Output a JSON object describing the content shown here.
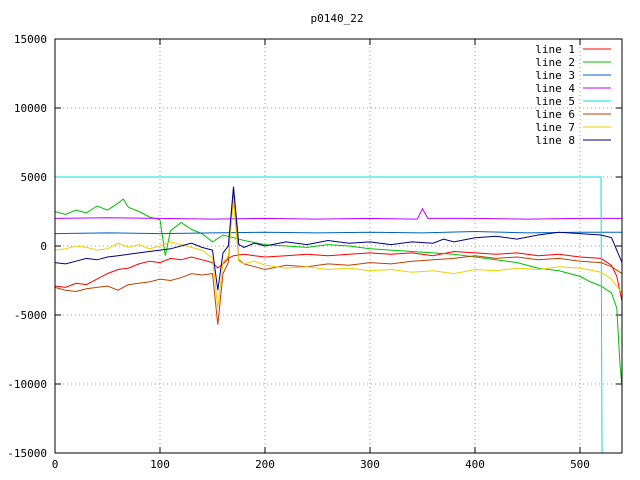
{
  "chart_data": {
    "type": "line",
    "title": "p0140_22",
    "xlabel": "",
    "ylabel": "",
    "xlim": [
      0,
      540
    ],
    "ylim": [
      -15000,
      15000
    ],
    "xticks": [
      0,
      100,
      200,
      300,
      400,
      500
    ],
    "yticks": [
      -15000,
      -10000,
      -5000,
      0,
      5000,
      10000,
      15000
    ],
    "grid": true,
    "legend_position": "top-right",
    "series": [
      {
        "name": "line 1",
        "color": "#ff0000",
        "points": [
          [
            0,
            -2900
          ],
          [
            10,
            -3000
          ],
          [
            20,
            -2700
          ],
          [
            30,
            -2800
          ],
          [
            40,
            -2400
          ],
          [
            50,
            -2000
          ],
          [
            60,
            -1700
          ],
          [
            70,
            -1600
          ],
          [
            80,
            -1300
          ],
          [
            90,
            -1100
          ],
          [
            100,
            -1200
          ],
          [
            110,
            -900
          ],
          [
            120,
            -1000
          ],
          [
            130,
            -800
          ],
          [
            140,
            -1000
          ],
          [
            150,
            -1200
          ],
          [
            155,
            -1600
          ],
          [
            160,
            -1300
          ],
          [
            165,
            -900
          ],
          [
            170,
            -700
          ],
          [
            180,
            -600
          ],
          [
            190,
            -700
          ],
          [
            200,
            -800
          ],
          [
            220,
            -700
          ],
          [
            240,
            -600
          ],
          [
            260,
            -700
          ],
          [
            280,
            -600
          ],
          [
            300,
            -500
          ],
          [
            320,
            -600
          ],
          [
            340,
            -500
          ],
          [
            360,
            -700
          ],
          [
            380,
            -400
          ],
          [
            400,
            -500
          ],
          [
            420,
            -600
          ],
          [
            440,
            -500
          ],
          [
            460,
            -700
          ],
          [
            480,
            -600
          ],
          [
            500,
            -800
          ],
          [
            520,
            -900
          ],
          [
            530,
            -1400
          ],
          [
            535,
            -2200
          ],
          [
            540,
            -4000
          ]
        ]
      },
      {
        "name": "line 2",
        "color": "#00c000",
        "points": [
          [
            0,
            2500
          ],
          [
            10,
            2300
          ],
          [
            20,
            2600
          ],
          [
            30,
            2400
          ],
          [
            40,
            2900
          ],
          [
            50,
            2600
          ],
          [
            60,
            3100
          ],
          [
            65,
            3400
          ],
          [
            70,
            2800
          ],
          [
            80,
            2500
          ],
          [
            90,
            2100
          ],
          [
            100,
            1900
          ],
          [
            105,
            -700
          ],
          [
            110,
            1100
          ],
          [
            120,
            1700
          ],
          [
            130,
            1200
          ],
          [
            140,
            900
          ],
          [
            150,
            300
          ],
          [
            160,
            800
          ],
          [
            170,
            600
          ],
          [
            180,
            400
          ],
          [
            200,
            100
          ],
          [
            220,
            0
          ],
          [
            240,
            -100
          ],
          [
            260,
            100
          ],
          [
            280,
            0
          ],
          [
            300,
            -200
          ],
          [
            320,
            -300
          ],
          [
            340,
            -400
          ],
          [
            360,
            -500
          ],
          [
            380,
            -600
          ],
          [
            400,
            -800
          ],
          [
            420,
            -1000
          ],
          [
            440,
            -1200
          ],
          [
            460,
            -1600
          ],
          [
            480,
            -1800
          ],
          [
            500,
            -2200
          ],
          [
            510,
            -2600
          ],
          [
            520,
            -2900
          ],
          [
            530,
            -3400
          ],
          [
            535,
            -4500
          ],
          [
            538,
            -8500
          ],
          [
            540,
            -10200
          ]
        ]
      },
      {
        "name": "line 3",
        "color": "#0060c0",
        "points": [
          [
            0,
            900
          ],
          [
            50,
            950
          ],
          [
            100,
            900
          ],
          [
            150,
            950
          ],
          [
            200,
            1000
          ],
          [
            250,
            950
          ],
          [
            300,
            1000
          ],
          [
            350,
            950
          ],
          [
            400,
            1050
          ],
          [
            450,
            950
          ],
          [
            500,
            1000
          ],
          [
            520,
            1000
          ],
          [
            540,
            1000
          ]
        ]
      },
      {
        "name": "line 4",
        "color": "#c000ff",
        "points": [
          [
            0,
            2000
          ],
          [
            50,
            2050
          ],
          [
            100,
            2000
          ],
          [
            150,
            1950
          ],
          [
            200,
            2000
          ],
          [
            250,
            1950
          ],
          [
            300,
            2000
          ],
          [
            345,
            1950
          ],
          [
            350,
            2700
          ],
          [
            355,
            2000
          ],
          [
            400,
            2000
          ],
          [
            450,
            1950
          ],
          [
            500,
            2000
          ],
          [
            540,
            2000
          ]
        ]
      },
      {
        "name": "line 5",
        "color": "#00e0e0",
        "points": [
          [
            0,
            5000
          ],
          [
            100,
            5000
          ],
          [
            200,
            5000
          ],
          [
            300,
            5000
          ],
          [
            400,
            5000
          ],
          [
            500,
            5000
          ],
          [
            520,
            5000
          ],
          [
            521,
            -15000
          ]
        ]
      },
      {
        "name": "line 6",
        "color": "#c04000",
        "points": [
          [
            0,
            -3000
          ],
          [
            10,
            -3200
          ],
          [
            20,
            -3300
          ],
          [
            30,
            -3100
          ],
          [
            40,
            -3000
          ],
          [
            50,
            -2900
          ],
          [
            60,
            -3200
          ],
          [
            70,
            -2800
          ],
          [
            80,
            -2700
          ],
          [
            90,
            -2600
          ],
          [
            100,
            -2400
          ],
          [
            110,
            -2500
          ],
          [
            120,
            -2300
          ],
          [
            130,
            -2000
          ],
          [
            140,
            -2100
          ],
          [
            150,
            -2000
          ],
          [
            155,
            -5700
          ],
          [
            160,
            -2000
          ],
          [
            165,
            -1200
          ],
          [
            170,
            4200
          ],
          [
            175,
            -1000
          ],
          [
            180,
            -1300
          ],
          [
            190,
            -1500
          ],
          [
            200,
            -1700
          ],
          [
            220,
            -1400
          ],
          [
            240,
            -1500
          ],
          [
            260,
            -1300
          ],
          [
            280,
            -1400
          ],
          [
            300,
            -1200
          ],
          [
            320,
            -1300
          ],
          [
            340,
            -1100
          ],
          [
            360,
            -1000
          ],
          [
            380,
            -900
          ],
          [
            400,
            -700
          ],
          [
            420,
            -900
          ],
          [
            440,
            -800
          ],
          [
            460,
            -1000
          ],
          [
            480,
            -900
          ],
          [
            500,
            -1100
          ],
          [
            520,
            -1200
          ],
          [
            530,
            -1500
          ],
          [
            540,
            -2000
          ]
        ]
      },
      {
        "name": "line 7",
        "color": "#f0d000",
        "points": [
          [
            0,
            -300
          ],
          [
            10,
            -200
          ],
          [
            20,
            0
          ],
          [
            30,
            -100
          ],
          [
            40,
            -300
          ],
          [
            50,
            -200
          ],
          [
            60,
            200
          ],
          [
            70,
            -100
          ],
          [
            80,
            100
          ],
          [
            90,
            -200
          ],
          [
            100,
            0
          ],
          [
            110,
            300
          ],
          [
            120,
            100
          ],
          [
            130,
            -100
          ],
          [
            140,
            -300
          ],
          [
            150,
            -900
          ],
          [
            155,
            -4500
          ],
          [
            160,
            -1200
          ],
          [
            165,
            -700
          ],
          [
            170,
            3300
          ],
          [
            175,
            -1100
          ],
          [
            180,
            -1300
          ],
          [
            190,
            -1100
          ],
          [
            200,
            -1400
          ],
          [
            220,
            -1600
          ],
          [
            240,
            -1500
          ],
          [
            260,
            -1700
          ],
          [
            280,
            -1600
          ],
          [
            300,
            -1800
          ],
          [
            320,
            -1700
          ],
          [
            340,
            -1900
          ],
          [
            360,
            -1800
          ],
          [
            380,
            -2000
          ],
          [
            400,
            -1700
          ],
          [
            420,
            -1800
          ],
          [
            440,
            -1600
          ],
          [
            460,
            -1700
          ],
          [
            480,
            -1500
          ],
          [
            500,
            -1600
          ],
          [
            520,
            -1900
          ],
          [
            530,
            -2400
          ],
          [
            540,
            -3400
          ]
        ]
      },
      {
        "name": "line 8",
        "color": "#000080",
        "points": [
          [
            0,
            -1200
          ],
          [
            10,
            -1300
          ],
          [
            20,
            -1100
          ],
          [
            30,
            -900
          ],
          [
            40,
            -1000
          ],
          [
            50,
            -800
          ],
          [
            60,
            -700
          ],
          [
            70,
            -600
          ],
          [
            80,
            -500
          ],
          [
            90,
            -400
          ],
          [
            100,
            -300
          ],
          [
            110,
            -200
          ],
          [
            120,
            0
          ],
          [
            130,
            200
          ],
          [
            140,
            -100
          ],
          [
            150,
            -300
          ],
          [
            155,
            -3200
          ],
          [
            160,
            -500
          ],
          [
            165,
            0
          ],
          [
            170,
            4300
          ],
          [
            175,
            100
          ],
          [
            180,
            -100
          ],
          [
            190,
            200
          ],
          [
            200,
            0
          ],
          [
            220,
            300
          ],
          [
            240,
            100
          ],
          [
            260,
            400
          ],
          [
            280,
            200
          ],
          [
            300,
            300
          ],
          [
            320,
            100
          ],
          [
            340,
            300
          ],
          [
            360,
            200
          ],
          [
            370,
            500
          ],
          [
            380,
            300
          ],
          [
            400,
            600
          ],
          [
            420,
            700
          ],
          [
            440,
            500
          ],
          [
            460,
            800
          ],
          [
            480,
            1000
          ],
          [
            500,
            900
          ],
          [
            520,
            800
          ],
          [
            530,
            600
          ],
          [
            540,
            -1200
          ]
        ]
      }
    ]
  }
}
